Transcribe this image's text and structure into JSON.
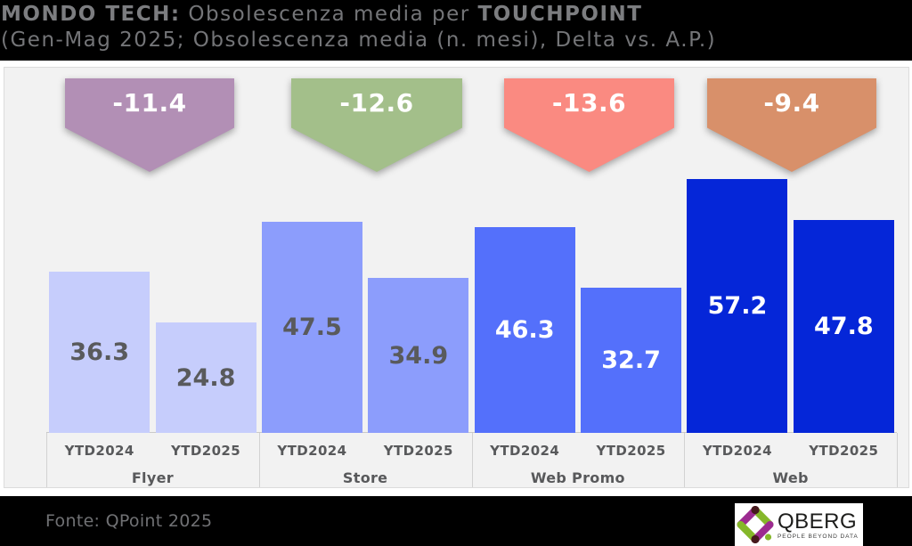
{
  "header": {
    "title_bold_prefix": "MONDO TECH:",
    "title_regular": " Obsolescenza media per ",
    "title_bold_suffix": "TOUCHPOINT",
    "subtitle": "(Gen-Mag 2025; Obsolescenza media (n. mesi), Delta vs. A.P.)"
  },
  "chart_data": {
    "type": "bar",
    "title": "MONDO TECH: Obsolescenza media per TOUCHPOINT",
    "subtitle": "(Gen-Mag 2025; Obsolescenza media (n. mesi), Delta vs. A.P.)",
    "categories": [
      "Flyer",
      "Store",
      "Web Promo",
      "Web"
    ],
    "series": [
      {
        "name": "YTD2024",
        "values": [
          36.3,
          47.5,
          46.3,
          57.2
        ]
      },
      {
        "name": "YTD2025",
        "values": [
          24.8,
          34.9,
          32.7,
          47.8
        ]
      }
    ],
    "deltas": {
      "label_prefix": "",
      "values": [
        -11.4,
        -12.6,
        -13.6,
        -9.4
      ]
    },
    "ylim": [
      0,
      62
    ],
    "grid": false,
    "legend": false,
    "value_labels": "inside-center",
    "bar_colors": [
      "#c6cdfc",
      "#8c9dfc",
      "#5470fb",
      "#0526d8"
    ],
    "bar_label_colors": [
      "#595a5c",
      "#595a5c",
      "#ffffff",
      "#ffffff"
    ],
    "delta_colors": [
      "#b28fb5",
      "#a3bf8a",
      "#fa8a81",
      "#d8906a"
    ]
  },
  "footer": {
    "source": "Fonte: QPoint 2025",
    "logo": {
      "name": "QBERG",
      "tagline": "PEOPLE BEYOND DATA"
    }
  },
  "colors": {
    "header_bg": "#000000",
    "header_text": "#747578",
    "panel_bg": "#f2f2f2",
    "panel_border": "#dcdcdc",
    "axis_text": "#58595b",
    "footer_bg": "#000000",
    "footer_text": "#707174",
    "logo_green": "#85b72a",
    "logo_purple": "#9c2b90",
    "logo_maroon": "#46191d",
    "logo_name_color": "#1d1d1b",
    "logo_tagline_color": "#3c3c3b"
  }
}
